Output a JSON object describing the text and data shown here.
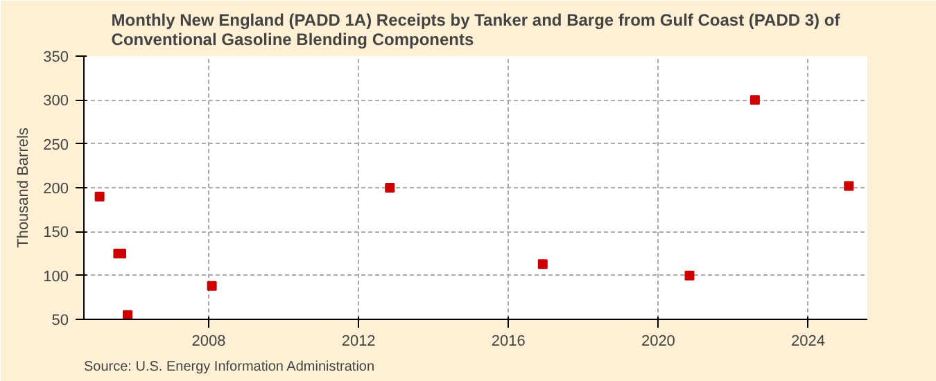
{
  "chart_data": {
    "type": "scatter",
    "title": "Monthly New England (PADD 1A) Receipts by Tanker and Barge from Gulf Coast (PADD 3) of\nConventional Gasoline Blending Components",
    "ylabel": "Thousand Barrels",
    "annotations": [
      "Source: U.S. Energy Information Administration"
    ],
    "x": [
      "2005-02",
      "2005-08",
      "2005-09",
      "2005-11",
      "2008-02",
      "2012-11",
      "2016-12",
      "2020-11",
      "2022-08",
      "2025-02"
    ],
    "series": [
      {
        "color": "#cc0000",
        "values": [
          190,
          125,
          125,
          55,
          88,
          200,
          113,
          100,
          300,
          202
        ]
      }
    ],
    "xlim": [
      "2004-09",
      "2025-08"
    ],
    "xticks": [
      "2008",
      "2012",
      "2016",
      "2020",
      "2024"
    ],
    "ylim": [
      50,
      350
    ],
    "yticks": [
      50,
      100,
      150,
      200,
      250,
      300,
      350
    ],
    "grid": true,
    "marker": "square"
  }
}
